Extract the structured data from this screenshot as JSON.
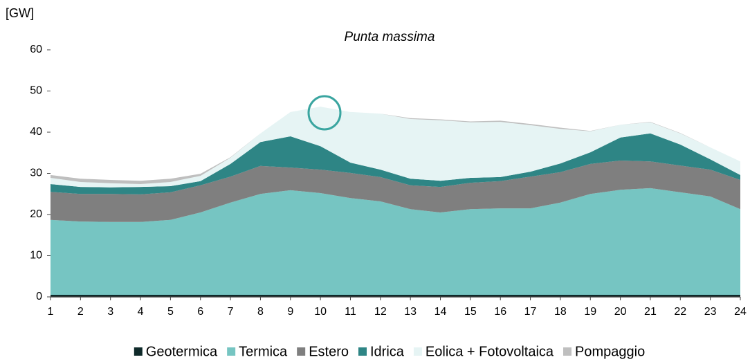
{
  "chart_data": {
    "type": "stacked_area",
    "title": "Punta massima",
    "y_label": "[GW]",
    "x": [
      1,
      2,
      3,
      4,
      5,
      6,
      7,
      8,
      9,
      10,
      11,
      12,
      13,
      14,
      15,
      16,
      17,
      18,
      19,
      20,
      21,
      22,
      23,
      24
    ],
    "xlim": [
      1,
      24
    ],
    "xticks": [
      1,
      2,
      3,
      4,
      5,
      6,
      7,
      8,
      9,
      10,
      11,
      12,
      13,
      14,
      15,
      16,
      17,
      18,
      19,
      20,
      21,
      22,
      23,
      24
    ],
    "ylim": [
      0,
      60
    ],
    "yticks": [
      0,
      10,
      20,
      30,
      40,
      50,
      60
    ],
    "series": [
      {
        "name": "Geotermica",
        "color": "#0f2a2a",
        "values": [
          0.5,
          0.5,
          0.5,
          0.5,
          0.5,
          0.5,
          0.5,
          0.5,
          0.5,
          0.5,
          0.5,
          0.5,
          0.5,
          0.5,
          0.5,
          0.5,
          0.5,
          0.5,
          0.5,
          0.5,
          0.5,
          0.5,
          0.5,
          0.5
        ]
      },
      {
        "name": "Termica",
        "color": "#76c5c2",
        "values": [
          18.2,
          17.8,
          17.7,
          17.7,
          18.2,
          20.0,
          22.4,
          24.5,
          25.4,
          24.7,
          23.5,
          22.7,
          20.8,
          20.0,
          20.8,
          21.0,
          21.0,
          22.4,
          24.5,
          25.5,
          25.9,
          24.9,
          23.9,
          20.8
        ]
      },
      {
        "name": "Estero",
        "color": "#7f7f7f",
        "values": [
          6.8,
          6.7,
          6.8,
          6.7,
          6.7,
          6.6,
          6.3,
          6.8,
          5.5,
          5.7,
          6.1,
          5.9,
          5.8,
          6.2,
          6.4,
          6.6,
          7.7,
          7.4,
          7.3,
          7.1,
          6.5,
          6.5,
          6.5,
          7.1
        ]
      },
      {
        "name": "Idrica",
        "color": "#2e8585",
        "values": [
          1.9,
          1.7,
          1.6,
          1.8,
          1.5,
          1.0,
          3.1,
          5.8,
          7.6,
          5.7,
          2.5,
          1.8,
          1.6,
          1.5,
          1.2,
          1.0,
          1.2,
          2.1,
          2.8,
          5.6,
          6.8,
          5.1,
          2.5,
          1.2
        ]
      },
      {
        "name": "Eolica + Fotovoltaica",
        "color": "#e6f4f4",
        "values": [
          1.5,
          1.2,
          1.0,
          0.7,
          1.0,
          1.3,
          1.5,
          2.1,
          5.9,
          9.6,
          12.3,
          13.6,
          14.5,
          14.7,
          13.5,
          13.4,
          11.3,
          8.4,
          5.1,
          3.1,
          2.7,
          2.7,
          2.9,
          3.3
        ]
      },
      {
        "name": "Pompaggio",
        "color": "#bfbfbf",
        "values": [
          0.7,
          0.8,
          0.8,
          0.8,
          0.8,
          0.5,
          0.1,
          0,
          0,
          0,
          0,
          0,
          0.2,
          0.2,
          0.2,
          0.3,
          0.3,
          0.3,
          0.1,
          0,
          0.1,
          0.1,
          0,
          0
        ]
      }
    ]
  }
}
